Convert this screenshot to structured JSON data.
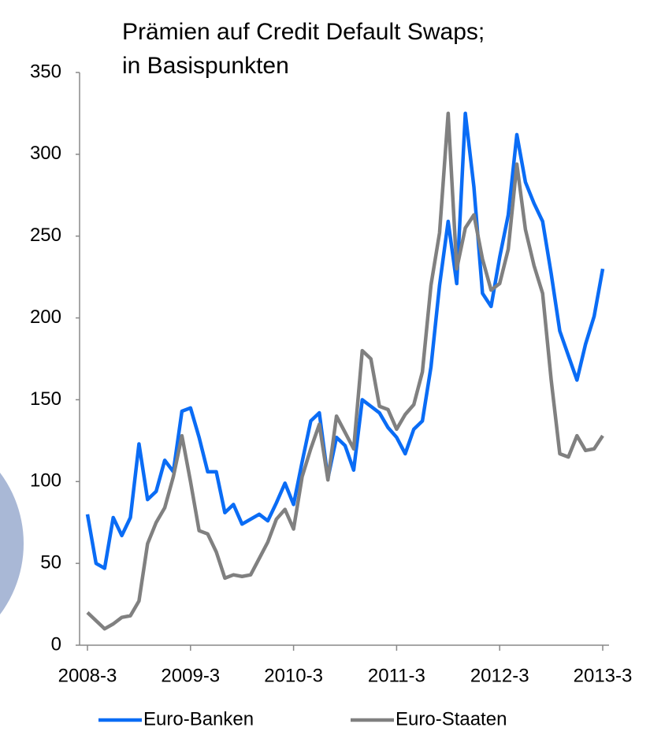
{
  "chart_data": {
    "type": "line",
    "title": "Prämien auf Credit Default Swaps;",
    "subtitle": "in Basispunkten",
    "categories": [
      "2008-3",
      null,
      null,
      null,
      null,
      null,
      null,
      null,
      null,
      null,
      null,
      null,
      "2009-3",
      null,
      null,
      null,
      null,
      null,
      null,
      null,
      null,
      null,
      null,
      null,
      "2010-3",
      null,
      null,
      null,
      null,
      null,
      null,
      null,
      null,
      null,
      null,
      null,
      "2011-3",
      null,
      null,
      null,
      null,
      null,
      null,
      null,
      null,
      null,
      null,
      null,
      "2012-3",
      null,
      null,
      null,
      null,
      null,
      null,
      null,
      null,
      null,
      null,
      null,
      "2013-3"
    ],
    "series": [
      {
        "name": "Euro-Banken",
        "color": "#0a6cf5",
        "values": [
          80,
          50,
          47,
          78,
          67,
          78,
          123,
          89,
          94,
          113,
          106,
          143,
          145,
          127,
          106,
          106,
          81,
          86,
          74,
          77,
          80,
          76,
          87,
          99,
          86,
          112,
          137,
          142,
          102,
          127,
          122,
          107,
          150,
          146,
          142,
          133,
          127,
          117,
          132,
          137,
          170,
          220,
          259,
          221,
          325,
          280,
          215,
          207,
          237,
          263,
          312,
          283,
          270,
          259,
          227,
          192,
          177,
          162,
          184,
          201,
          230
        ]
      },
      {
        "name": "Euro-Staaten",
        "color": "#808080",
        "values": [
          20,
          15,
          10,
          13,
          17,
          18,
          27,
          62,
          75,
          84,
          103,
          128,
          100,
          70,
          68,
          57,
          41,
          43,
          42,
          43,
          53,
          63,
          77,
          83,
          71,
          103,
          120,
          135,
          101,
          140,
          130,
          120,
          180,
          175,
          146,
          144,
          132,
          141,
          147,
          167,
          220,
          252,
          325,
          230,
          255,
          263,
          236,
          217,
          221,
          242,
          294,
          254,
          232,
          215,
          162,
          117,
          115,
          128,
          119,
          120,
          128
        ]
      }
    ],
    "ylim": [
      0,
      350
    ],
    "yticks": [
      0,
      50,
      100,
      150,
      200,
      250,
      300,
      350
    ]
  }
}
